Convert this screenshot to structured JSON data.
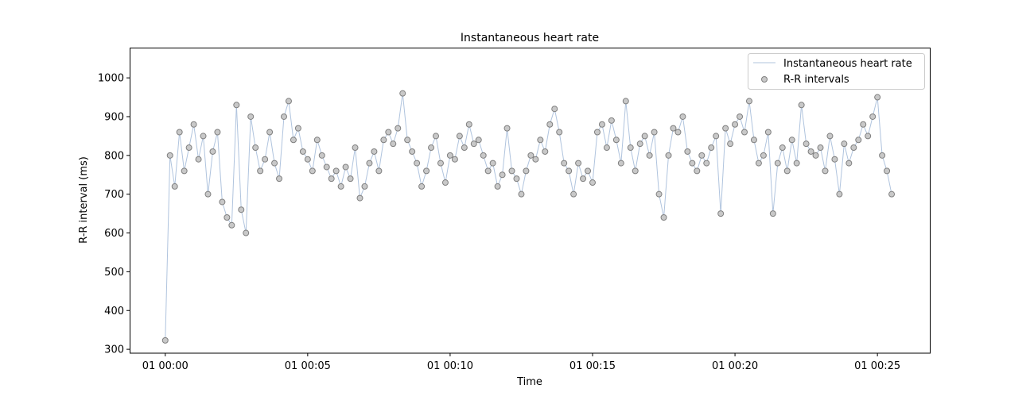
{
  "chart_data": {
    "type": "line+scatter",
    "title": "Instantaneous heart rate",
    "xlabel": "Time",
    "ylabel": "R-R interval (ms)",
    "ylim": [
      290,
      1078
    ],
    "xlim": [
      "23:58:45",
      "00:26:52"
    ],
    "yticks": [
      300,
      400,
      500,
      600,
      700,
      800,
      900,
      1000
    ],
    "xticks": [
      {
        "time": "00:00:00",
        "label": "01 00:00"
      },
      {
        "time": "00:05:00",
        "label": "01 00:05"
      },
      {
        "time": "00:10:00",
        "label": "01 00:10"
      },
      {
        "time": "00:15:00",
        "label": "01 00:15"
      },
      {
        "time": "00:20:00",
        "label": "01 00:20"
      },
      {
        "time": "00:25:00",
        "label": "01 00:25"
      }
    ],
    "grid": false,
    "legend": {
      "placement": "upper-right",
      "entries": [
        {
          "label": "Instantaneous heart rate",
          "marker": "line",
          "color": "#b0c4de"
        },
        {
          "label": "R-R intervals",
          "marker": "circle",
          "color": "#c8c8c8",
          "edge": "#808080"
        }
      ]
    },
    "series": [
      {
        "name": "Instantaneous heart rate",
        "kind": "line",
        "color": "#b0c4de"
      },
      {
        "name": "R-R intervals",
        "kind": "scatter",
        "color": "#c8c8c8",
        "edge": "#808080"
      }
    ],
    "time": [
      "00:00:00",
      "00:00:10",
      "00:00:20",
      "00:00:30",
      "00:00:40",
      "00:00:50",
      "00:01:00",
      "00:01:10",
      "00:01:20",
      "00:01:30",
      "00:01:40",
      "00:01:50",
      "00:02:00",
      "00:02:10",
      "00:02:20",
      "00:02:30",
      "00:02:40",
      "00:02:50",
      "00:03:00",
      "00:03:10",
      "00:03:20",
      "00:03:30",
      "00:03:40",
      "00:03:50",
      "00:04:00",
      "00:04:10",
      "00:04:20",
      "00:04:30",
      "00:04:40",
      "00:04:50",
      "00:05:00",
      "00:05:10",
      "00:05:20",
      "00:05:30",
      "00:05:40",
      "00:05:50",
      "00:06:00",
      "00:06:10",
      "00:06:20",
      "00:06:30",
      "00:06:40",
      "00:06:50",
      "00:07:00",
      "00:07:10",
      "00:07:20",
      "00:07:30",
      "00:07:40",
      "00:07:50",
      "00:08:00",
      "00:08:10",
      "00:08:20",
      "00:08:30",
      "00:08:40",
      "00:08:50",
      "00:09:00",
      "00:09:10",
      "00:09:20",
      "00:09:30",
      "00:09:40",
      "00:09:50",
      "00:10:00",
      "00:10:10",
      "00:10:20",
      "00:10:30",
      "00:10:40",
      "00:10:50",
      "00:11:00",
      "00:11:10",
      "00:11:20",
      "00:11:30",
      "00:11:40",
      "00:11:50",
      "00:12:00",
      "00:12:10",
      "00:12:20",
      "00:12:30",
      "00:12:40",
      "00:12:50",
      "00:13:00",
      "00:13:10",
      "00:13:20",
      "00:13:30",
      "00:13:40",
      "00:13:50",
      "00:14:00",
      "00:14:10",
      "00:14:20",
      "00:14:30",
      "00:14:40",
      "00:14:50",
      "00:15:00",
      "00:15:10",
      "00:15:20",
      "00:15:30",
      "00:15:40",
      "00:15:50",
      "00:16:00",
      "00:16:10",
      "00:16:20",
      "00:16:30",
      "00:16:40",
      "00:16:50",
      "00:17:00",
      "00:17:10",
      "00:17:20",
      "00:17:30",
      "00:17:40",
      "00:17:50",
      "00:18:00",
      "00:18:10",
      "00:18:20",
      "00:18:30",
      "00:18:40",
      "00:18:50",
      "00:19:00",
      "00:19:10",
      "00:19:20",
      "00:19:30",
      "00:19:40",
      "00:19:50",
      "00:20:00",
      "00:20:10",
      "00:20:20",
      "00:20:30",
      "00:20:40",
      "00:20:50",
      "00:21:00",
      "00:21:10",
      "00:21:20",
      "00:21:30",
      "00:21:40",
      "00:21:50",
      "00:22:00",
      "00:22:10",
      "00:22:20",
      "00:22:30",
      "00:22:40",
      "00:22:50",
      "00:23:00",
      "00:23:10",
      "00:23:20",
      "00:23:30",
      "00:23:40",
      "00:23:50",
      "00:24:00",
      "00:24:10",
      "00:24:20",
      "00:24:30",
      "00:24:40",
      "00:24:50",
      "00:25:00",
      "00:25:10",
      "00:25:20",
      "00:25:30"
    ],
    "rr_ms": [
      323,
      800,
      720,
      860,
      760,
      820,
      880,
      790,
      850,
      700,
      810,
      860,
      680,
      640,
      620,
      930,
      660,
      600,
      900,
      820,
      760,
      790,
      860,
      780,
      740,
      900,
      940,
      840,
      870,
      810,
      790,
      760,
      840,
      800,
      770,
      740,
      760,
      720,
      770,
      740,
      820,
      690,
      720,
      780,
      810,
      760,
      840,
      860,
      830,
      870,
      960,
      840,
      810,
      780,
      720,
      760,
      820,
      850,
      780,
      730,
      800,
      790,
      850,
      820,
      880,
      830,
      840,
      800,
      760,
      780,
      720,
      750,
      870,
      760,
      740,
      700,
      760,
      800,
      790,
      840,
      810,
      880,
      920,
      860,
      780,
      760,
      700,
      780,
      740,
      760,
      730,
      860,
      880,
      820,
      890,
      840,
      780,
      940,
      820,
      760,
      830,
      850,
      800,
      860,
      700,
      640,
      800,
      870,
      860,
      900,
      810,
      780,
      760,
      800,
      780,
      820,
      850,
      650,
      870,
      830,
      880,
      900,
      860,
      940,
      840,
      780,
      800,
      860,
      650,
      780,
      820,
      760,
      840,
      780,
      930,
      830,
      810,
      800,
      820,
      760,
      850,
      790,
      700,
      830,
      780,
      820,
      840,
      880,
      850,
      900,
      950,
      800,
      760,
      700
    ]
  }
}
